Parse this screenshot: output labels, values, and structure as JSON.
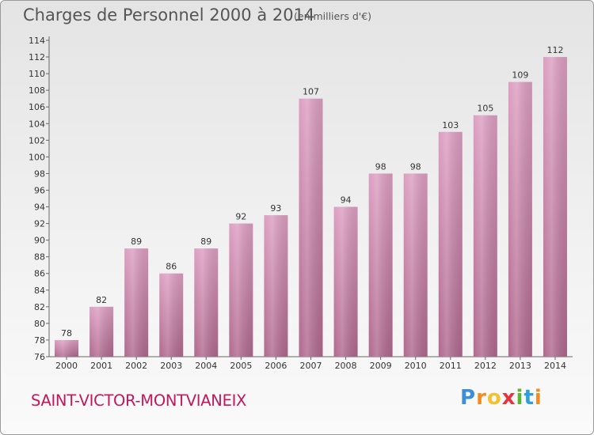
{
  "header": {
    "title": "Charges de Personnel 2000 à 2014",
    "subtitle": "(en milliers d'€)"
  },
  "footer": {
    "commune": "SAINT-VICTOR-MONTVIANEIX",
    "logo": {
      "letters": [
        "P",
        "r",
        "o",
        "x",
        "i",
        "t",
        "i"
      ],
      "colors": [
        "#3a8fd8",
        "#f28c1e",
        "#f2c12e",
        "#e8333c",
        "#5bb531",
        "#2e9fd8",
        "#f28c1e"
      ]
    }
  },
  "chart_data": {
    "type": "bar",
    "title": "Charges de Personnel 2000 à 2014",
    "categories": [
      "2000",
      "2001",
      "2002",
      "2003",
      "2004",
      "2005",
      "2006",
      "2007",
      "2008",
      "2009",
      "2010",
      "2011",
      "2012",
      "2013",
      "2014"
    ],
    "values": [
      78,
      82,
      89,
      86,
      89,
      92,
      93,
      107,
      94,
      98,
      98,
      103,
      105,
      109,
      112
    ],
    "ylim": [
      76,
      114
    ],
    "yticks": [
      76,
      78,
      80,
      82,
      84,
      86,
      88,
      90,
      92,
      94,
      96,
      98,
      100,
      102,
      104,
      106,
      108,
      110,
      112,
      114
    ],
    "grid": false,
    "bar_color": "#dd9fc2",
    "bar_color_dark": "#b0698e"
  }
}
